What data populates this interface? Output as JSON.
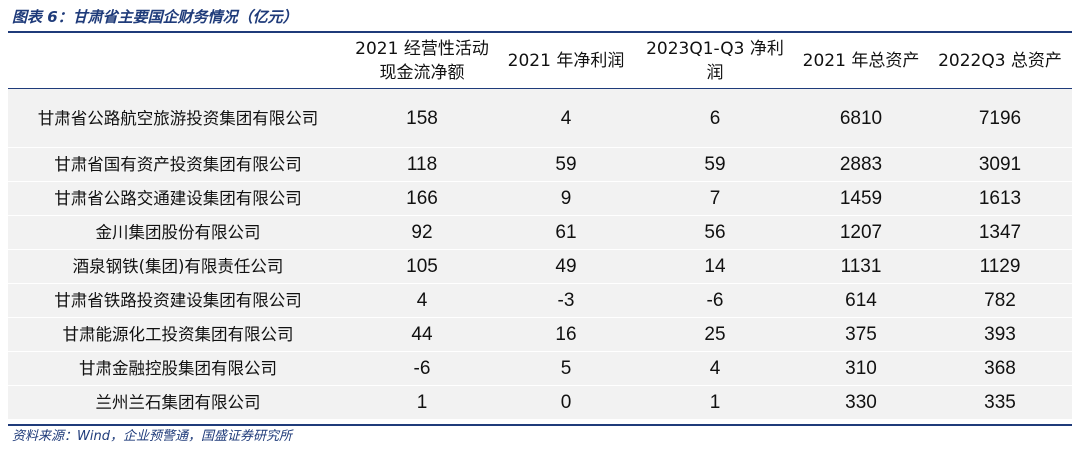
{
  "title": "图表 6：甘肃省主要国企财务情况（亿元）",
  "columns": [
    "",
    "2021 经营性活动现金流净额",
    "2021 年净利润",
    "2023Q1-Q3 净利润",
    "2021 年总资产",
    "2022Q3 总资产"
  ],
  "rows": [
    [
      "甘肃省公路航空旅游投资集团有限公司",
      "158",
      "4",
      "6",
      "6810",
      "7196"
    ],
    [
      "甘肃省国有资产投资集团有限公司",
      "118",
      "59",
      "59",
      "2883",
      "3091"
    ],
    [
      "甘肃省公路交通建设集团有限公司",
      "166",
      "9",
      "7",
      "1459",
      "1613"
    ],
    [
      "金川集团股份有限公司",
      "92",
      "61",
      "56",
      "1207",
      "1347"
    ],
    [
      "酒泉钢铁(集团)有限责任公司",
      "105",
      "49",
      "14",
      "1131",
      "1129"
    ],
    [
      "甘肃省铁路投资建设集团有限公司",
      "4",
      "-3",
      "-6",
      "614",
      "782"
    ],
    [
      "甘肃能源化工投资集团有限公司",
      "44",
      "16",
      "25",
      "375",
      "393"
    ],
    [
      "甘肃金融控股集团有限公司",
      "-6",
      "5",
      "4",
      "310",
      "368"
    ],
    [
      "兰州兰石集团有限公司",
      "1",
      "0",
      "1",
      "330",
      "335"
    ]
  ],
  "source": "资料来源：Wind，企业预警通，国盛证券研究所",
  "colors": {
    "accent": "#1f3b7a",
    "row_background": "#f2f2f2"
  }
}
